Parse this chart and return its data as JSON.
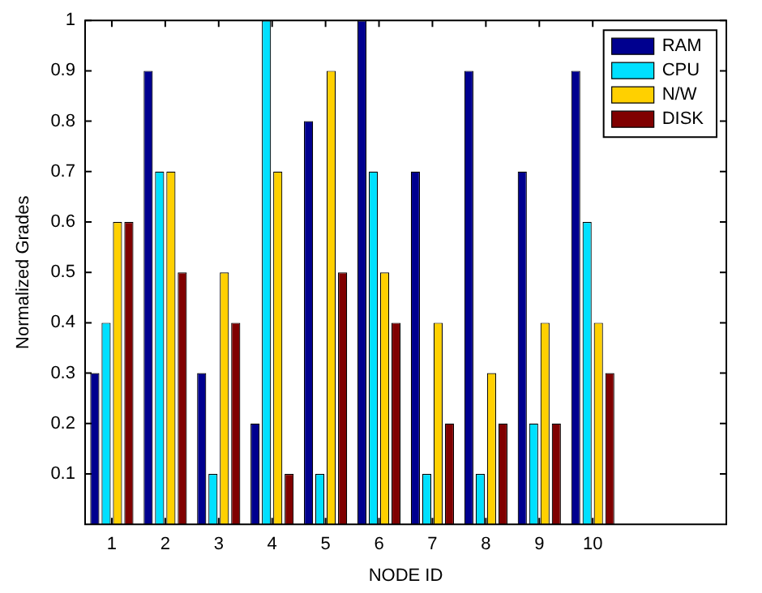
{
  "chart_data": {
    "type": "bar",
    "xlabel": "NODE ID",
    "ylabel": "Normalized Grades",
    "categories": [
      "1",
      "2",
      "3",
      "4",
      "5",
      "6",
      "7",
      "8",
      "9",
      "10"
    ],
    "series": [
      {
        "name": "RAM",
        "color": "#00008f",
        "values": [
          0.3,
          0.9,
          0.3,
          0.2,
          0.8,
          1,
          0.7,
          0.9,
          0.7,
          0.9
        ]
      },
      {
        "name": "CPU",
        "color": "#00e0ff",
        "values": [
          0.4,
          0.7,
          0.1,
          1,
          0.1,
          0.7,
          0.1,
          0.1,
          0.2,
          0.6
        ]
      },
      {
        "name": "N/W",
        "color": "#ffd000",
        "values": [
          0.6,
          0.7,
          0.5,
          0.7,
          0.9,
          0.5,
          0.4,
          0.3,
          0.4,
          0.4
        ]
      },
      {
        "name": "DISK",
        "color": "#800000",
        "values": [
          0.6,
          0.5,
          0.4,
          0.1,
          0.5,
          0.4,
          0.2,
          0.2,
          0.2,
          0.3
        ]
      }
    ],
    "ylim": [
      0,
      1
    ],
    "yticks": [
      0.1,
      0.2,
      0.3,
      0.4,
      0.5,
      0.6,
      0.7,
      0.8,
      0.9,
      1
    ],
    "grid": false,
    "legend": "top right"
  }
}
